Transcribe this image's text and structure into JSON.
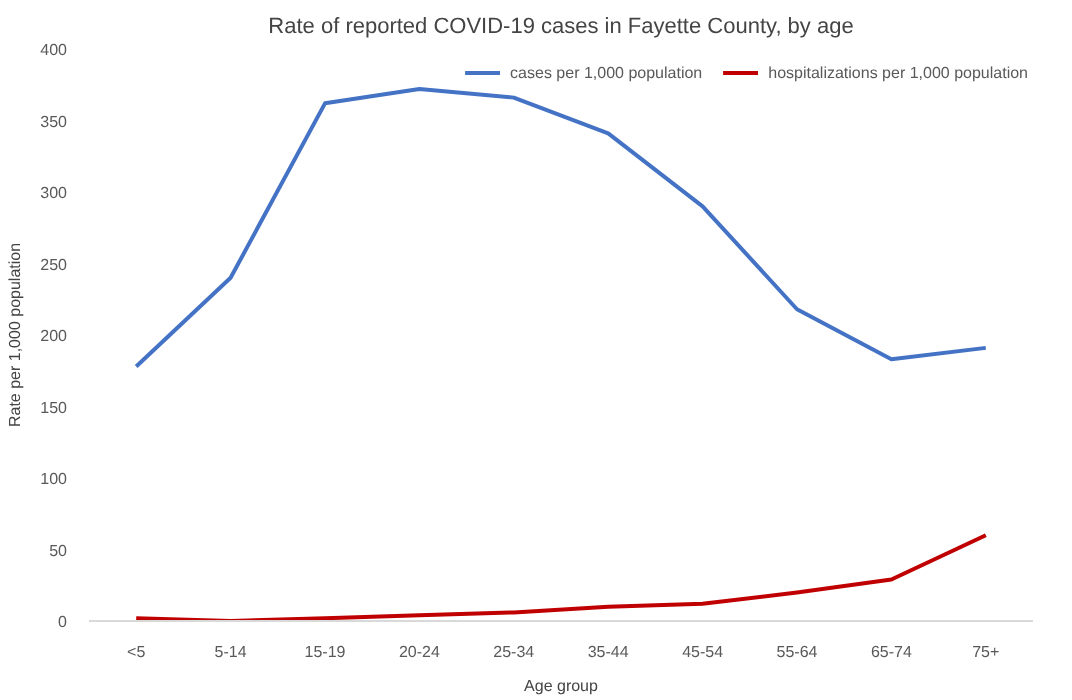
{
  "chart_data": {
    "type": "line",
    "title": "Rate of reported COVID-19 cases in Fayette County, by age",
    "xlabel": "Age group",
    "ylabel": "Rate per 1,000 population",
    "categories": [
      "<5",
      "5-14",
      "15-19",
      "20-24",
      "25-34",
      "35-44",
      "45-54",
      "55-64",
      "65-74",
      "75+"
    ],
    "series": [
      {
        "name": "cases per 1,000 population",
        "color": "#4472c4",
        "values": [
          178,
          240,
          362,
          372,
          366,
          341,
          290,
          218,
          183,
          191
        ]
      },
      {
        "name": "hospitalizations per 1,000 population",
        "color": "#c00000",
        "values": [
          2,
          0,
          2,
          4,
          6,
          10,
          12,
          20,
          29,
          60
        ]
      }
    ],
    "ylim": [
      0,
      400
    ],
    "yticks": [
      0,
      50,
      100,
      150,
      200,
      250,
      300,
      350,
      400
    ],
    "grid": false,
    "legend": "top right",
    "marker": "none",
    "line_style": "solid"
  }
}
